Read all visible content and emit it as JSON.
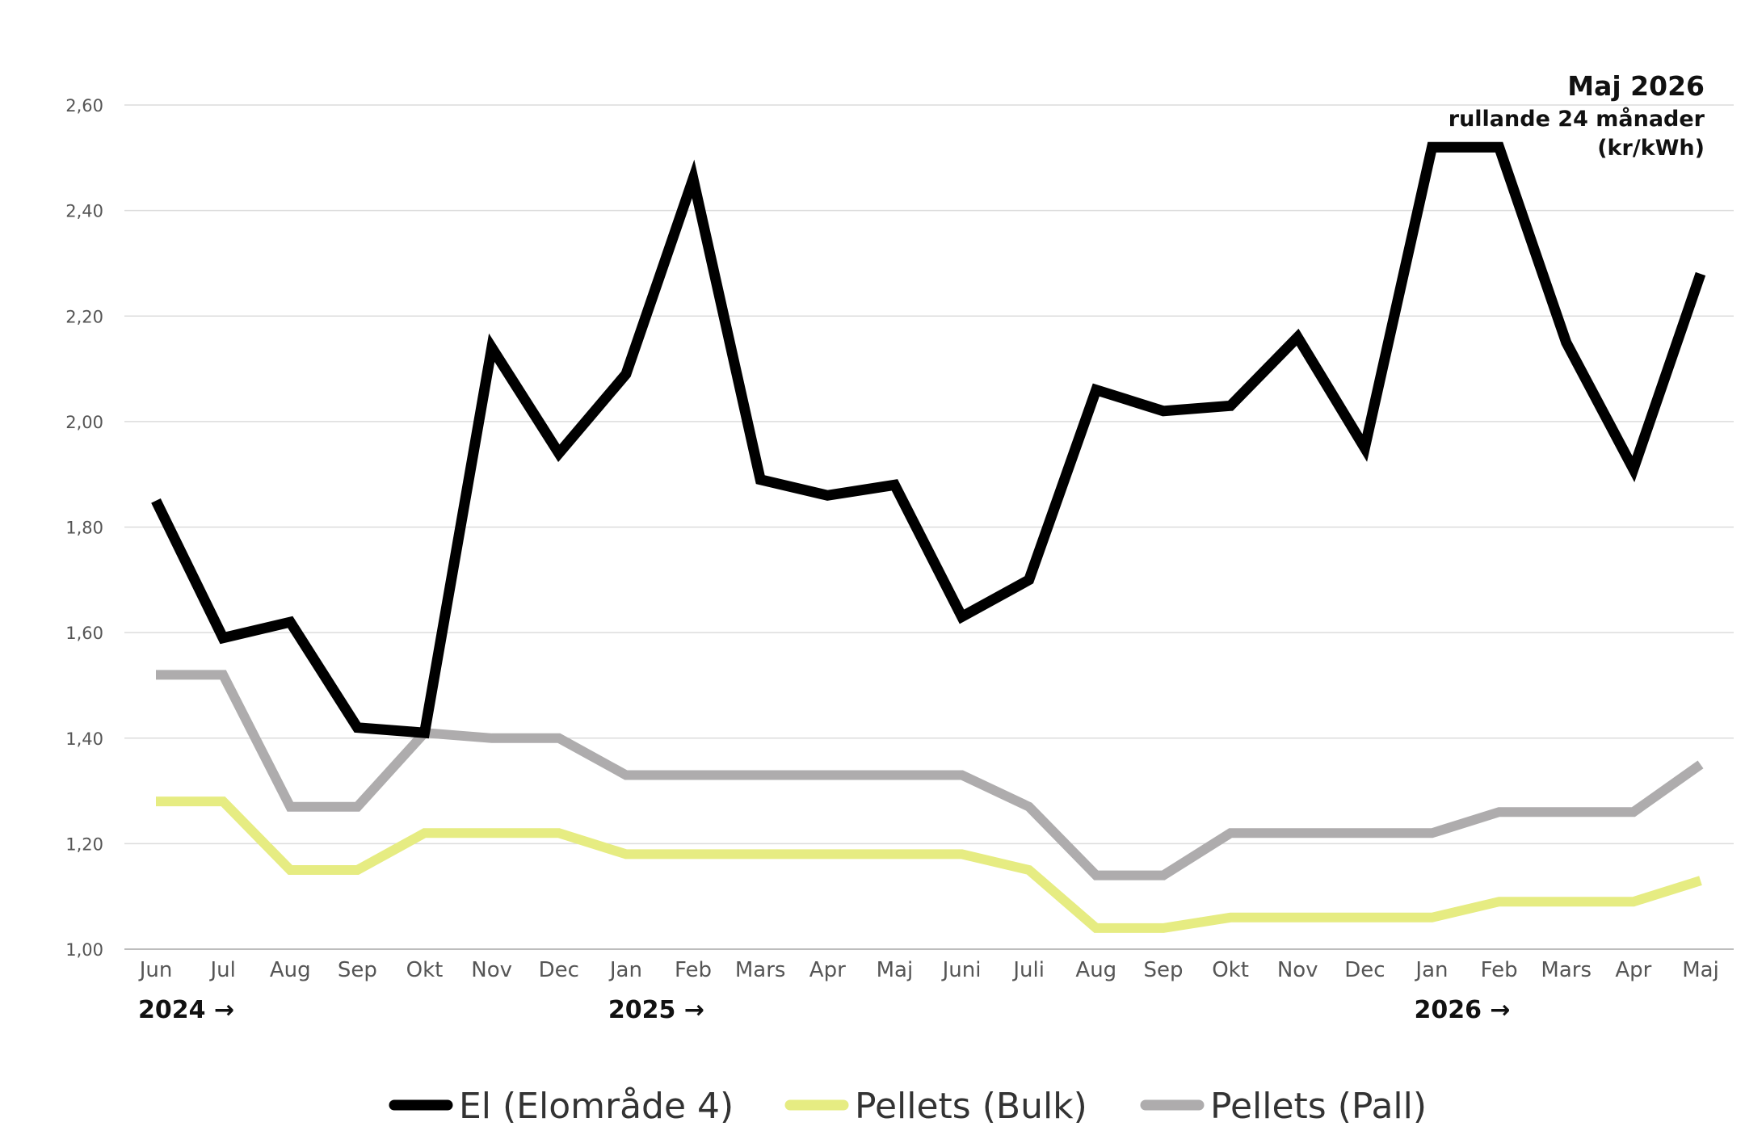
{
  "chart_data": {
    "type": "line",
    "title": "Maj 2026",
    "subtitle": "rullande 24 månader",
    "unit": "(kr/kWh)",
    "ylim": [
      1.0,
      2.6
    ],
    "yticks": [
      "1,00",
      "1,20",
      "1,40",
      "1,60",
      "1,80",
      "2,00",
      "2,20",
      "2,40",
      "2,60"
    ],
    "categories": [
      "Jun",
      "Jul",
      "Aug",
      "Sep",
      "Okt",
      "Nov",
      "Dec",
      "Jan",
      "Feb",
      "Mars",
      "Apr",
      "Maj",
      "Juni",
      "Juli",
      "Aug",
      "Sep",
      "Okt",
      "Nov",
      "Dec",
      "Jan",
      "Feb",
      "Mars",
      "Apr",
      "Maj"
    ],
    "year_markers": [
      {
        "label": "2024 →",
        "index": 0
      },
      {
        "label": "2025 →",
        "index": 7
      },
      {
        "label": "2026 →",
        "index": 19
      }
    ],
    "grid": true,
    "legend_position": "bottom",
    "series": [
      {
        "name": "El (Elområde 4)",
        "color": "#000000",
        "values": [
          1.85,
          1.59,
          1.62,
          1.42,
          1.41,
          2.14,
          1.94,
          2.09,
          2.46,
          1.89,
          1.86,
          1.88,
          1.63,
          1.7,
          2.06,
          2.02,
          2.03,
          2.16,
          1.95,
          2.52,
          2.52,
          2.15,
          1.91,
          2.28
        ]
      },
      {
        "name": "Pellets (Bulk)",
        "color": "#e6ec82",
        "values": [
          1.28,
          1.28,
          1.15,
          1.15,
          1.22,
          1.22,
          1.22,
          1.18,
          1.18,
          1.18,
          1.18,
          1.18,
          1.18,
          1.15,
          1.04,
          1.04,
          1.06,
          1.06,
          1.06,
          1.06,
          1.09,
          1.09,
          1.09,
          1.13
        ]
      },
      {
        "name": "Pellets (Pall)",
        "color": "#aeacad",
        "values": [
          1.52,
          1.52,
          1.27,
          1.27,
          1.41,
          1.4,
          1.4,
          1.33,
          1.33,
          1.33,
          1.33,
          1.33,
          1.33,
          1.27,
          1.14,
          1.14,
          1.22,
          1.22,
          1.22,
          1.22,
          1.26,
          1.26,
          1.26,
          1.35
        ]
      }
    ]
  }
}
